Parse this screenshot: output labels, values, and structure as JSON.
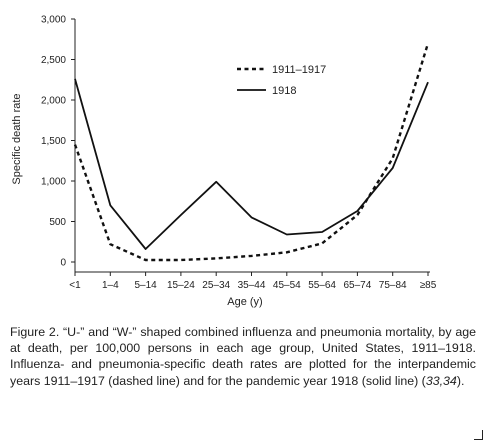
{
  "chart_data": {
    "type": "line",
    "title": "",
    "xlabel": "Age (y)",
    "ylabel": "Specific death rate",
    "categories": [
      "<1",
      "1–4",
      "5–14",
      "15–24",
      "25–34",
      "35–44",
      "45–54",
      "55–64",
      "65–74",
      "75–84",
      "≥85"
    ],
    "yticks": [
      "0",
      "500",
      "1,000",
      "1,500",
      "2,000",
      "2,500",
      "3,000"
    ],
    "ylim": [
      0,
      3000
    ],
    "grid": false,
    "legend_position": "top-right",
    "series": [
      {
        "name": "1911–1917",
        "style": "dashed",
        "color": "#111111",
        "values": [
          1450,
          220,
          25,
          25,
          45,
          75,
          120,
          230,
          580,
          1280,
          2700
        ]
      },
      {
        "name": "1918",
        "style": "solid",
        "color": "#111111",
        "values": [
          2260,
          700,
          160,
          580,
          990,
          550,
          340,
          370,
          630,
          1160,
          2220
        ]
      }
    ]
  },
  "caption": {
    "before_refs": "Figure 2. “U-” and “W-” shaped combined influenza and pneumonia mortality, by age at death, per 100,000 persons in each age group, United States, 1911–1918. Influenza- and pneumonia-specific death rates are plotted for the interpandemic years 1911–1917 (dashed line) and for the pandemic year 1918 (solid line) (",
    "refs": "33,34",
    "after_refs": ")."
  }
}
